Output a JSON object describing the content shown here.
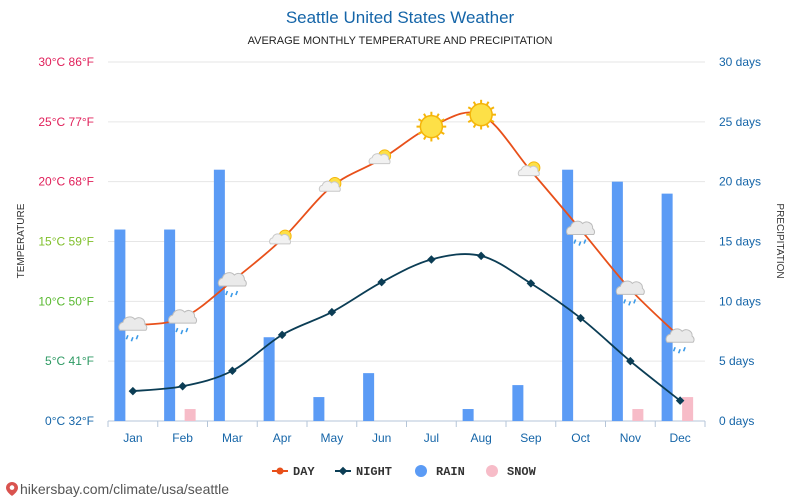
{
  "title": "Seattle United States Weather",
  "subtitle": "AVERAGE MONTHLY TEMPERATURE AND PRECIPITATION",
  "footer": {
    "url": "hikersbay.com/climate/usa/seattle"
  },
  "colors": {
    "day": "#e8501a",
    "night": "#0b3d55",
    "rain": "#5b9bf5",
    "snow": "#f7bcc8",
    "right_axis": "#1565a8"
  },
  "chart_data": {
    "type": "line",
    "categories": [
      "Jan",
      "Feb",
      "Mar",
      "Apr",
      "May",
      "Jun",
      "Jul",
      "Aug",
      "Sep",
      "Oct",
      "Nov",
      "Dec"
    ],
    "left_axis": {
      "title": "TEMPERATURE",
      "range": [
        0,
        30
      ],
      "ticks": [
        {
          "value": 0,
          "label": "0°C 32°F",
          "color": "#1565a8"
        },
        {
          "value": 5,
          "label": "5°C 41°F",
          "color": "#2e9a63"
        },
        {
          "value": 10,
          "label": "10°C 50°F",
          "color": "#58b82f"
        },
        {
          "value": 15,
          "label": "15°C 59°F",
          "color": "#7fbf2a"
        },
        {
          "value": 20,
          "label": "20°C 68°F",
          "color": "#e0205a"
        },
        {
          "value": 25,
          "label": "25°C 77°F",
          "color": "#e0205a"
        },
        {
          "value": 30,
          "label": "30°C 86°F",
          "color": "#e0205a"
        }
      ]
    },
    "right_axis": {
      "title": "PRECIPITATION",
      "range": [
        0,
        30
      ],
      "ticks": [
        {
          "value": 0,
          "label": "0 days"
        },
        {
          "value": 5,
          "label": "5 days"
        },
        {
          "value": 10,
          "label": "10 days"
        },
        {
          "value": 15,
          "label": "15 days"
        },
        {
          "value": 20,
          "label": "20 days"
        },
        {
          "value": 25,
          "label": "25 days"
        },
        {
          "value": 30,
          "label": "30 days"
        }
      ]
    },
    "series": [
      {
        "name": "DAY",
        "type": "line",
        "axis": "left",
        "values": [
          8,
          8.6,
          11.7,
          15.2,
          19.6,
          21.9,
          24.6,
          25.6,
          20.9,
          16,
          11,
          7
        ]
      },
      {
        "name": "NIGHT",
        "type": "line",
        "axis": "left",
        "values": [
          2.5,
          2.9,
          4.2,
          7.2,
          9.1,
          11.6,
          13.5,
          13.8,
          11.5,
          8.6,
          5,
          1.7
        ]
      },
      {
        "name": "RAIN",
        "type": "bar",
        "axis": "right",
        "values": [
          16,
          16,
          21,
          7,
          2,
          4,
          0,
          1,
          3,
          21,
          20,
          19
        ]
      },
      {
        "name": "SNOW",
        "type": "bar",
        "axis": "right",
        "values": [
          0,
          1,
          0,
          0,
          0,
          0,
          0,
          0,
          0,
          0,
          1,
          2
        ]
      }
    ],
    "weather_icons": [
      "rain-cloud",
      "rain-cloud",
      "rain-cloud",
      "sun-cloud",
      "sun-cloud",
      "sun-cloud",
      "sun",
      "sun",
      "sun-cloud",
      "rain-cloud",
      "rain-cloud",
      "rain-cloud"
    ],
    "grid": true,
    "legend_position": "bottom"
  }
}
